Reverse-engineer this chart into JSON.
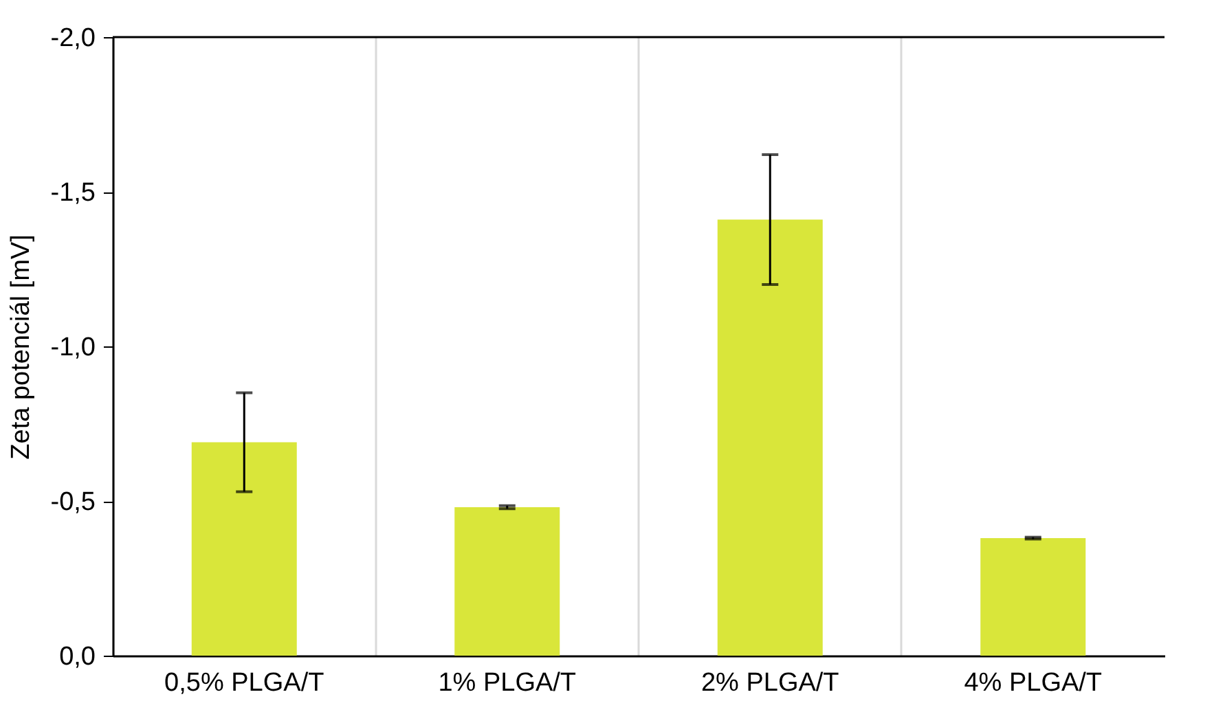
{
  "chart_data": {
    "type": "bar",
    "ylabel": "Zeta potenciál [mV]",
    "categories": [
      "0,5% PLGA/T",
      "1% PLGA/T",
      "2% PLGA/T",
      "4% PLGA/T"
    ],
    "values": [
      -0.69,
      -0.48,
      -1.41,
      -0.38
    ],
    "errors": [
      0.16,
      0.005,
      0.21,
      0.003
    ],
    "color": "#d9e63a",
    "ylim": [
      0,
      -2
    ],
    "yticks": [
      {
        "value": 0,
        "label": "0,0"
      },
      {
        "value": -0.5,
        "label": "-0,5"
      },
      {
        "value": -1,
        "label": "-1,0"
      },
      {
        "value": -1.5,
        "label": "-1,5"
      },
      {
        "value": -2,
        "label": "-2,0"
      }
    ],
    "grid": "x"
  }
}
